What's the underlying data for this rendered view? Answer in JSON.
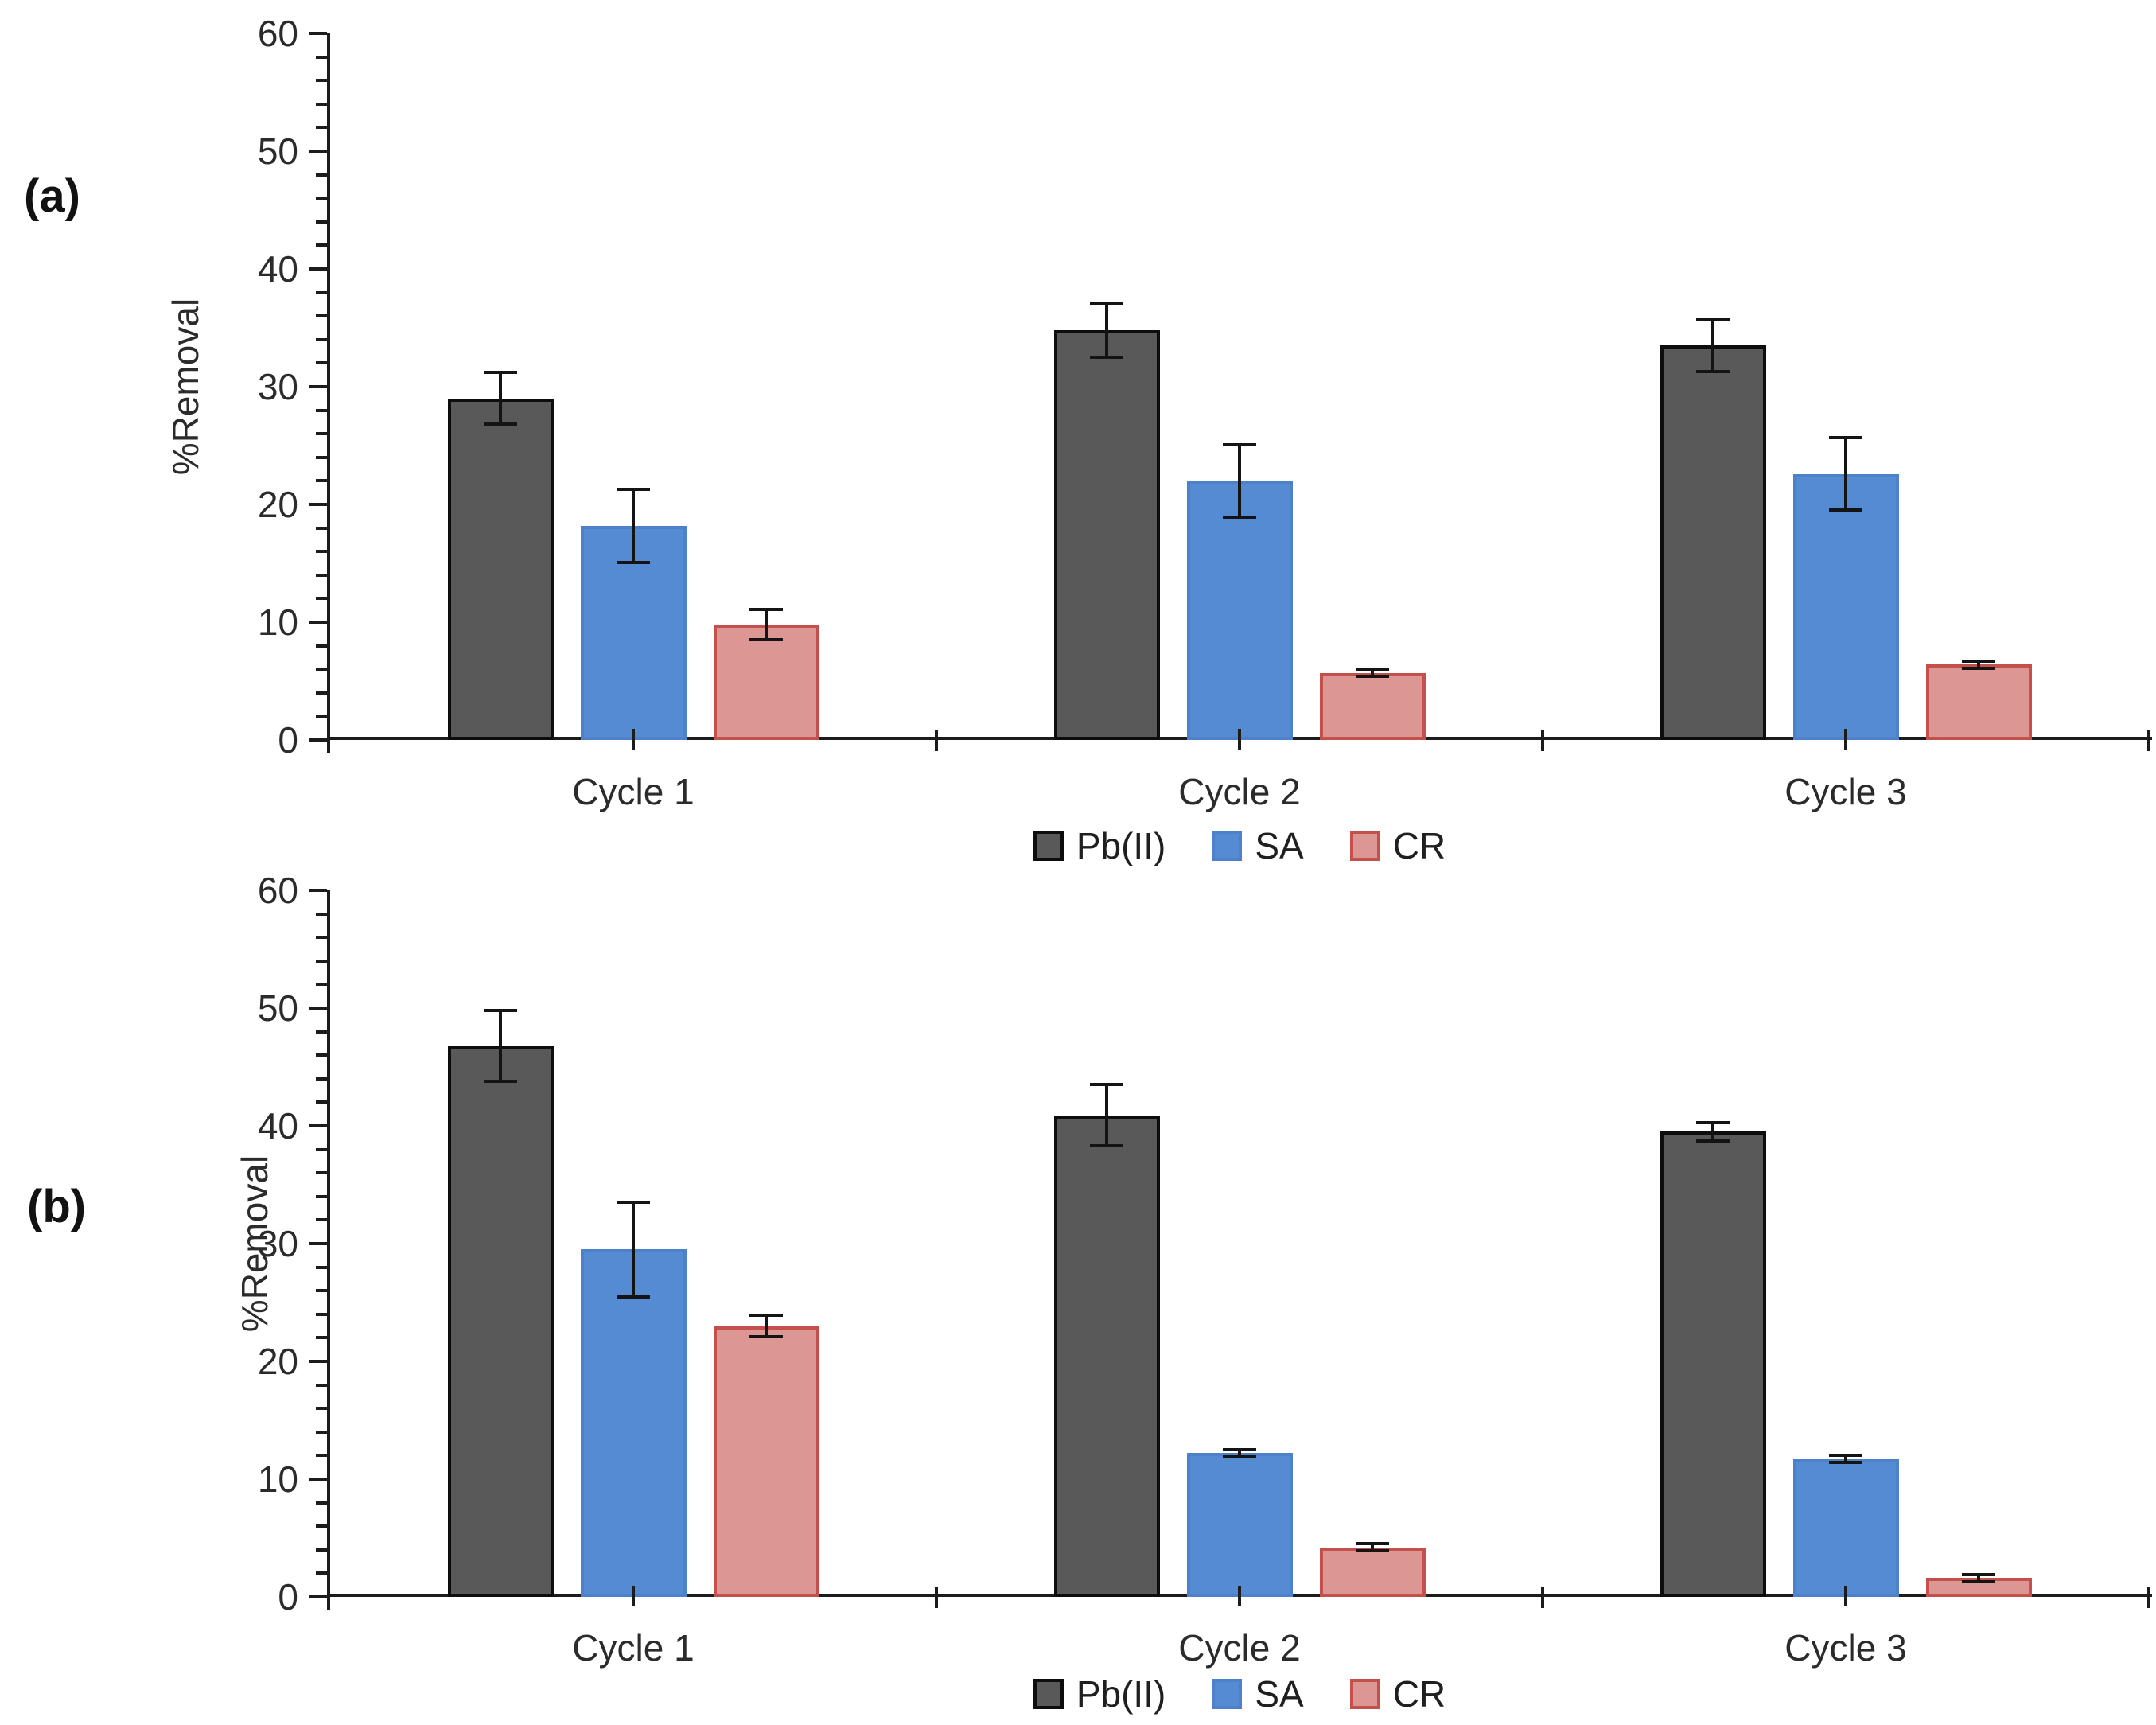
{
  "figure": {
    "background": "#FFFFFF"
  },
  "chart_data": [
    {
      "type": "bar",
      "panel_label": "(a)",
      "title": "",
      "xlabel": "",
      "ylabel": "%Removal",
      "ylim": [
        0,
        60
      ],
      "yticks": [
        0,
        10,
        20,
        30,
        40,
        50,
        60
      ],
      "ytick_interval": 10,
      "minor_tick_interval": 2,
      "grid": false,
      "legend_position": "bottom",
      "categories": [
        "Cycle 1",
        "Cycle 2",
        "Cycle 3"
      ],
      "series": [
        {
          "name": "Pb(II)",
          "fill": "#595959",
          "border": "#0D0D0D",
          "values": [
            29.0,
            34.8,
            33.5
          ],
          "errors": [
            2.2,
            2.3,
            2.2
          ]
        },
        {
          "name": "SA",
          "fill": "#548BD3",
          "border": "#4E82C8",
          "values": [
            18.2,
            22.0,
            22.6
          ],
          "errors": [
            3.1,
            3.1,
            3.1
          ]
        },
        {
          "name": "CR",
          "fill": "#DC9795",
          "border": "#C4504C",
          "values": [
            9.8,
            5.7,
            6.4
          ],
          "errors": [
            1.3,
            0.3,
            0.3
          ]
        }
      ]
    },
    {
      "type": "bar",
      "panel_label": "(b)",
      "title": "",
      "xlabel": "",
      "ylabel": "%Removal",
      "ylim": [
        0,
        60
      ],
      "yticks": [
        0,
        10,
        20,
        30,
        40,
        50,
        60
      ],
      "ytick_interval": 10,
      "minor_tick_interval": 2,
      "grid": false,
      "legend_position": "bottom",
      "categories": [
        "Cycle 1",
        "Cycle 2",
        "Cycle 3"
      ],
      "series": [
        {
          "name": "Pb(II)",
          "fill": "#595959",
          "border": "#0D0D0D",
          "values": [
            46.8,
            40.9,
            39.5
          ],
          "errors": [
            3.0,
            2.6,
            0.8
          ]
        },
        {
          "name": "SA",
          "fill": "#548BD3",
          "border": "#4E82C8",
          "values": [
            29.5,
            12.2,
            11.7
          ],
          "errors": [
            4.0,
            0.3,
            0.3
          ]
        },
        {
          "name": "CR",
          "fill": "#DC9795",
          "border": "#C4504C",
          "values": [
            23.0,
            4.2,
            1.6
          ],
          "errors": [
            0.9,
            0.3,
            0.3
          ]
        }
      ]
    }
  ]
}
